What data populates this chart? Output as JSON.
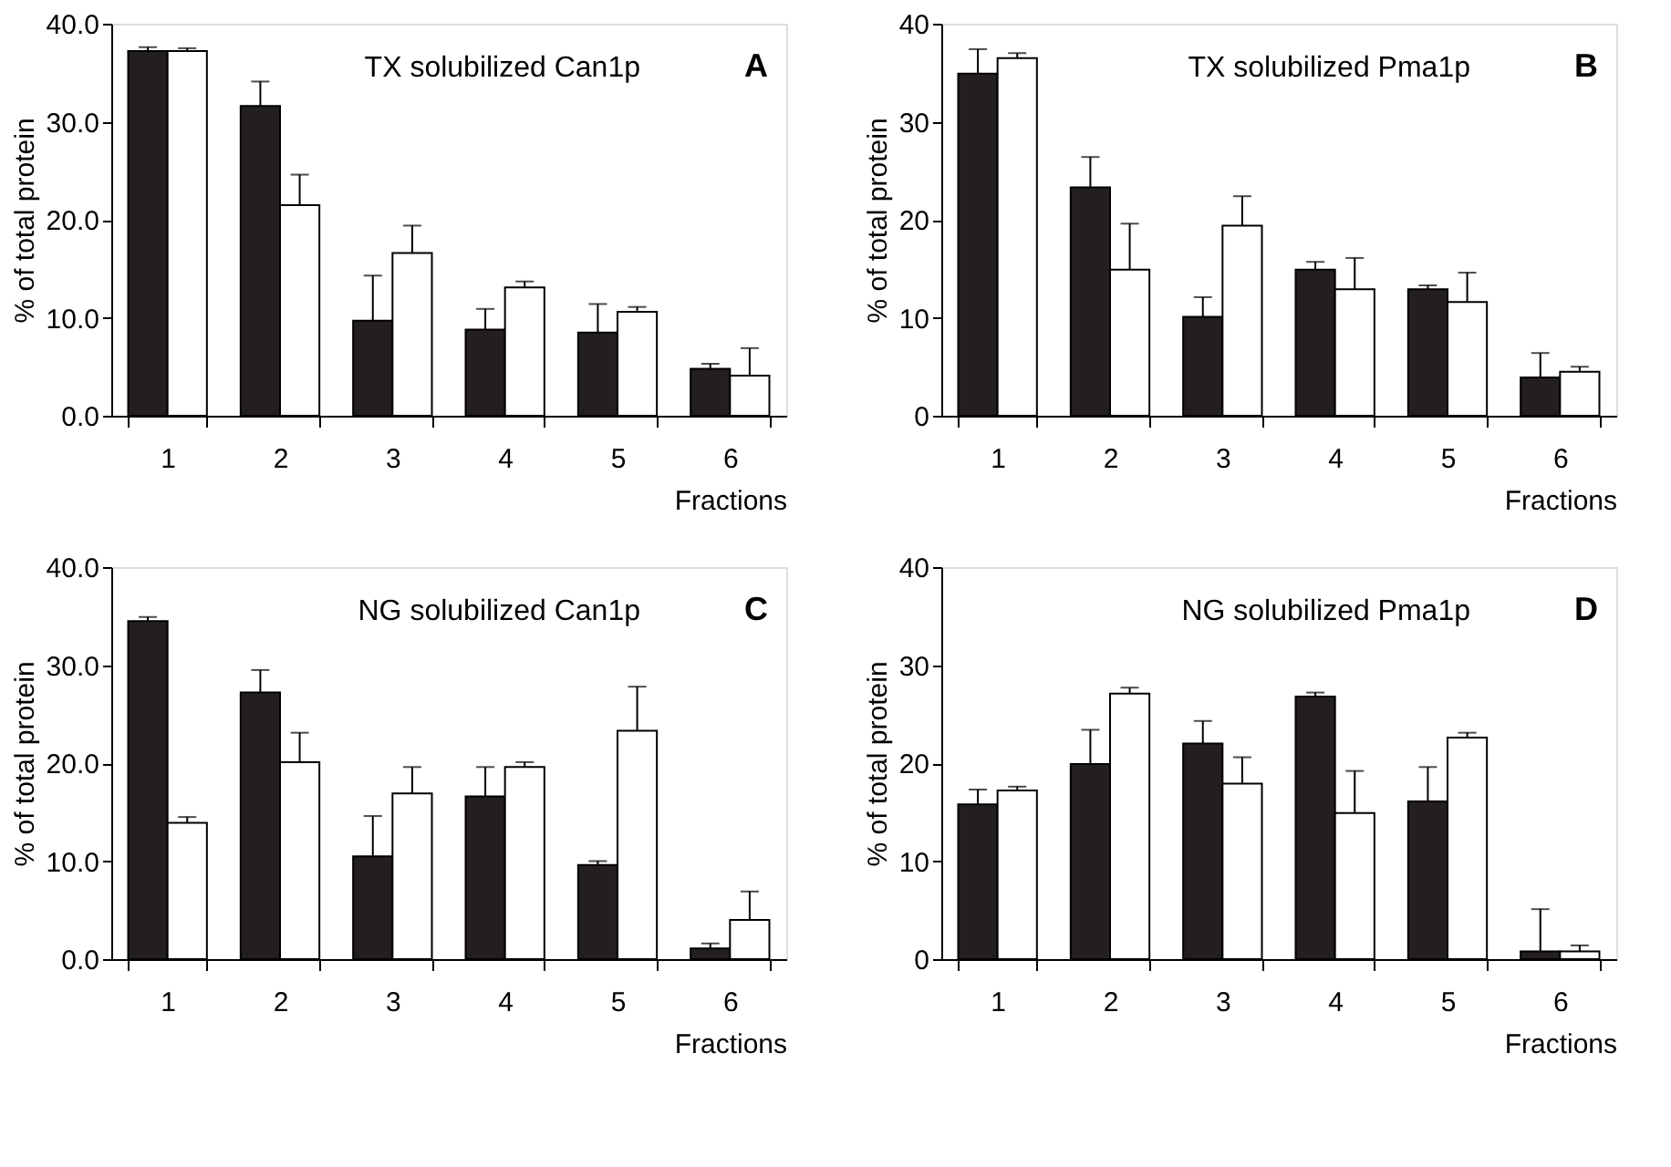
{
  "chart_data": [
    {
      "type": "bar",
      "title": "TX solubilized Can1p",
      "annotations": [
        "A"
      ],
      "xlabel": "Fractions",
      "ylabel": "% of total protein",
      "categories": [
        "1",
        "2",
        "3",
        "4",
        "5",
        "6"
      ],
      "ylim": [
        0,
        40
      ],
      "yticks": [
        {
          "value": 0,
          "label": "0.0"
        },
        {
          "value": 10,
          "label": "10.0"
        },
        {
          "value": 20,
          "label": "20.0"
        },
        {
          "value": 30,
          "label": "30.0"
        },
        {
          "value": 40,
          "label": "40.0"
        }
      ],
      "series": [
        {
          "color": "#231f20",
          "values": [
            37.2,
            31.6,
            9.7,
            8.8,
            8.5,
            4.8
          ],
          "errors": [
            [
              37.2,
              37.6
            ],
            [
              31.6,
              34.1
            ],
            [
              9.7,
              14.3
            ],
            [
              8.8,
              10.9
            ],
            [
              8.5,
              11.4
            ],
            [
              4.8,
              5.3
            ]
          ]
        },
        {
          "color": "#ffffff",
          "values": [
            37.2,
            21.5,
            16.6,
            13.1,
            10.6,
            4.1
          ],
          "errors": [
            [
              37.2,
              37.5
            ],
            [
              21.5,
              24.6
            ],
            [
              16.6,
              19.4
            ],
            [
              13.1,
              13.7
            ],
            [
              10.6,
              11.1
            ],
            [
              4.1,
              6.9
            ]
          ]
        }
      ]
    },
    {
      "type": "bar",
      "title": "TX solubilized Pma1p",
      "annotations": [
        "B"
      ],
      "xlabel": "Fractions",
      "ylabel": "% of total protein",
      "categories": [
        "1",
        "2",
        "3",
        "4",
        "5",
        "6"
      ],
      "ylim": [
        0,
        40
      ],
      "yticks": [
        0,
        10,
        20,
        30,
        40
      ],
      "series": [
        {
          "color": "#231f20",
          "values": [
            34.9,
            23.3,
            10.1,
            14.9,
            12.9,
            3.9
          ],
          "errors": [
            [
              34.9,
              37.4
            ],
            [
              23.3,
              26.4
            ],
            [
              10.1,
              12.1
            ],
            [
              14.9,
              15.7
            ],
            [
              12.9,
              13.3
            ],
            [
              3.9,
              6.4
            ]
          ]
        },
        {
          "color": "#ffffff",
          "values": [
            36.5,
            14.9,
            19.4,
            12.9,
            11.6,
            4.5
          ],
          "errors": [
            [
              36.5,
              37.0
            ],
            [
              14.9,
              19.6
            ],
            [
              19.4,
              22.4
            ],
            [
              12.9,
              16.1
            ],
            [
              11.6,
              14.6
            ],
            [
              4.5,
              5.0
            ]
          ]
        }
      ]
    },
    {
      "type": "bar",
      "title": "NG solubilized Can1p",
      "annotations": [
        "C"
      ],
      "xlabel": "Fractions",
      "ylabel": "% of total protein",
      "categories": [
        "1",
        "2",
        "3",
        "4",
        "5",
        "6"
      ],
      "ylim": [
        0,
        40
      ],
      "yticks": [
        {
          "value": 0,
          "label": "0.0"
        },
        {
          "value": 10,
          "label": "10.0"
        },
        {
          "value": 20,
          "label": "20.0"
        },
        {
          "value": 30,
          "label": "30.0"
        },
        {
          "value": 40,
          "label": "40.0"
        }
      ],
      "series": [
        {
          "color": "#231f20",
          "values": [
            34.5,
            27.2,
            10.5,
            16.6,
            9.6,
            1.1
          ],
          "errors": [
            [
              34.5,
              34.9
            ],
            [
              27.2,
              29.5
            ],
            [
              10.5,
              14.6
            ],
            [
              16.6,
              19.6
            ],
            [
              9.6,
              10.0
            ],
            [
              1.1,
              1.6
            ]
          ]
        },
        {
          "color": "#ffffff",
          "values": [
            13.9,
            20.1,
            16.9,
            19.6,
            23.3,
            4.0
          ],
          "errors": [
            [
              13.9,
              14.5
            ],
            [
              20.1,
              23.1
            ],
            [
              16.9,
              19.6
            ],
            [
              19.6,
              20.1
            ],
            [
              23.3,
              27.8
            ],
            [
              4.0,
              6.9
            ]
          ]
        }
      ]
    },
    {
      "type": "bar",
      "title": "NG solubilized Pma1p",
      "annotations": [
        "D"
      ],
      "xlabel": "Fractions",
      "ylabel": "% of total protein",
      "categories": [
        "1",
        "2",
        "3",
        "4",
        "5",
        "6"
      ],
      "ylim": [
        0,
        40
      ],
      "yticks": [
        0,
        10,
        20,
        30,
        40
      ],
      "series": [
        {
          "color": "#231f20",
          "values": [
            15.8,
            19.9,
            22.0,
            26.8,
            16.1,
            0.8
          ],
          "errors": [
            [
              15.8,
              17.3
            ],
            [
              19.9,
              23.4
            ],
            [
              22.0,
              24.3
            ],
            [
              26.8,
              27.2
            ],
            [
              16.1,
              19.6
            ],
            [
              0.8,
              5.1
            ]
          ]
        },
        {
          "color": "#ffffff",
          "values": [
            17.2,
            27.1,
            17.9,
            14.9,
            22.6,
            0.8
          ],
          "errors": [
            [
              17.2,
              17.6
            ],
            [
              27.1,
              27.7
            ],
            [
              17.9,
              20.6
            ],
            [
              14.9,
              19.2
            ],
            [
              22.6,
              23.1
            ],
            [
              0.8,
              1.4
            ]
          ]
        }
      ]
    }
  ]
}
